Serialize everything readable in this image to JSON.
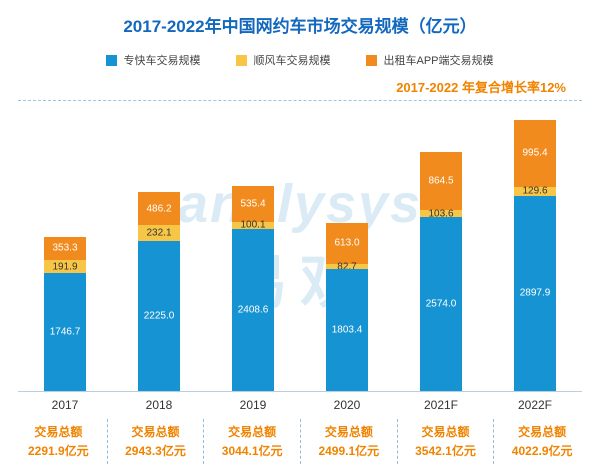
{
  "title": "2017-2022年中国网约车市场交易规模（亿元）",
  "legend": [
    {
      "label": "专快车交易规模",
      "color": "#1693d2"
    },
    {
      "label": "顺风车交易规模",
      "color": "#f8c647"
    },
    {
      "label": "出租车APP端交易规模",
      "color": "#f28b1e"
    }
  ],
  "annotation": "2017-2022 年复合增长率12%",
  "watermark": {
    "en": "analysys",
    "cn": "易观"
  },
  "chart_data": {
    "type": "bar",
    "stacked": true,
    "categories": [
      "2017",
      "2018",
      "2019",
      "2020",
      "2021F",
      "2022F"
    ],
    "series": [
      {
        "name": "专快车交易规模",
        "color": "#1693d2",
        "label_color": "#ffffff",
        "values": [
          1746.7,
          2225.0,
          2408.6,
          1803.4,
          2574.0,
          2897.9
        ]
      },
      {
        "name": "顺风车交易规模",
        "color": "#f8c647",
        "label_color": "#333333",
        "values": [
          191.9,
          232.1,
          100.1,
          82.7,
          103.6,
          129.6
        ]
      },
      {
        "name": "出租车APP端交易规模",
        "color": "#f28b1e",
        "label_color": "#ffffff",
        "values": [
          353.3,
          486.2,
          535.4,
          613.0,
          864.5,
          995.4
        ]
      }
    ],
    "ylim": [
      0,
      4300
    ],
    "totals_label": "交易总额",
    "totals": [
      "2291.9亿元",
      "2943.3亿元",
      "3044.1亿元",
      "2499.1亿元",
      "3542.1亿元",
      "4022.9亿元"
    ],
    "title": "2017-2022年中国网约车市场交易规模（亿元）",
    "xlabel": "",
    "ylabel": ""
  }
}
